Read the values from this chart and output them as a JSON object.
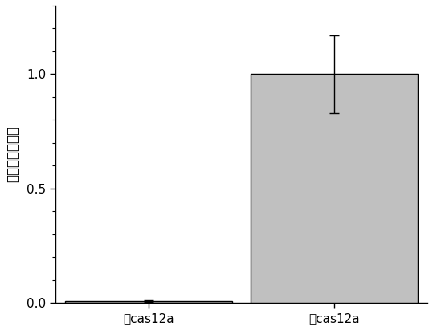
{
  "categories": [
    "无cas12a",
    "有cas12a"
  ],
  "values": [
    0.008,
    1.0
  ],
  "errors": [
    0.003,
    0.17
  ],
  "bar_colors": [
    "#c0c0c0",
    "#c0c0c0"
  ],
  "bar_edge_colors": [
    "#000000",
    "#000000"
  ],
  "ylabel": "归一化荧光强度",
  "ylim": [
    0,
    1.3
  ],
  "yticks": [
    0.0,
    0.5,
    1.0
  ],
  "bar_width": 0.45,
  "figsize": [
    5.39,
    4.11
  ],
  "dpi": 100,
  "background_color": "#ffffff",
  "error_capsize": 4,
  "error_color": "#000000",
  "bar_linewidth": 1.0,
  "ylabel_fontsize": 12,
  "tick_fontsize": 11,
  "x_positions": [
    0.25,
    0.75
  ]
}
